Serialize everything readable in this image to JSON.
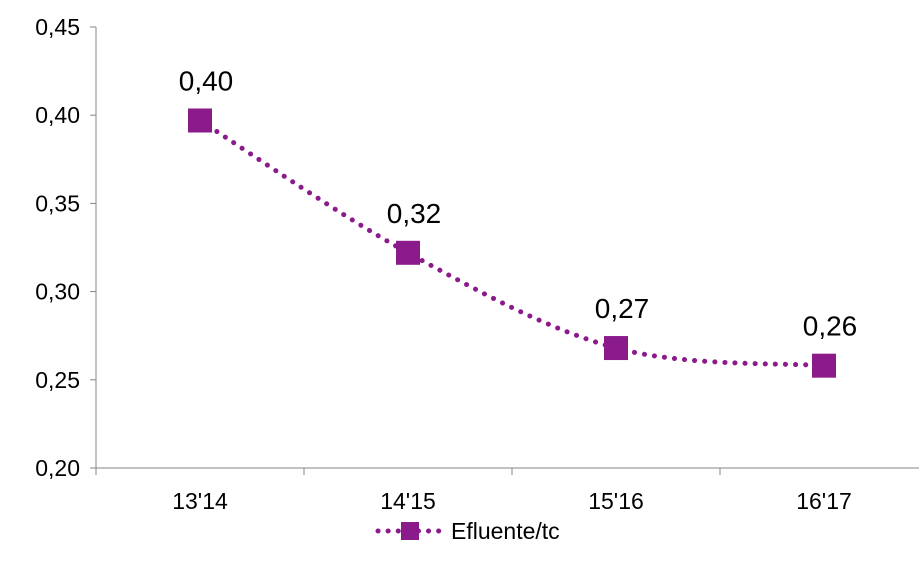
{
  "chart_data": {
    "type": "line",
    "title": "",
    "xlabel": "",
    "ylabel": "",
    "categories": [
      "13'14",
      "14'15",
      "15'16",
      "16'17"
    ],
    "series": [
      {
        "name": "Efluente/tc",
        "values": [
          0.397,
          0.322,
          0.268,
          0.258
        ],
        "data_labels": [
          "0,40",
          "0,32",
          "0,27",
          "0,26"
        ],
        "color": "#8B1A8B",
        "line_style": "dotted",
        "marker": "square",
        "smoothed": true
      }
    ],
    "ylim": [
      0.2,
      0.45
    ],
    "y_ticks": [
      0.2,
      0.25,
      0.3,
      0.35,
      0.4,
      0.45
    ],
    "y_tick_labels": [
      "0,20",
      "0,25",
      "0,30",
      "0,35",
      "0,40",
      "0,45"
    ],
    "grid": false,
    "legend_position": "bottom",
    "axis_color": "#868686"
  }
}
